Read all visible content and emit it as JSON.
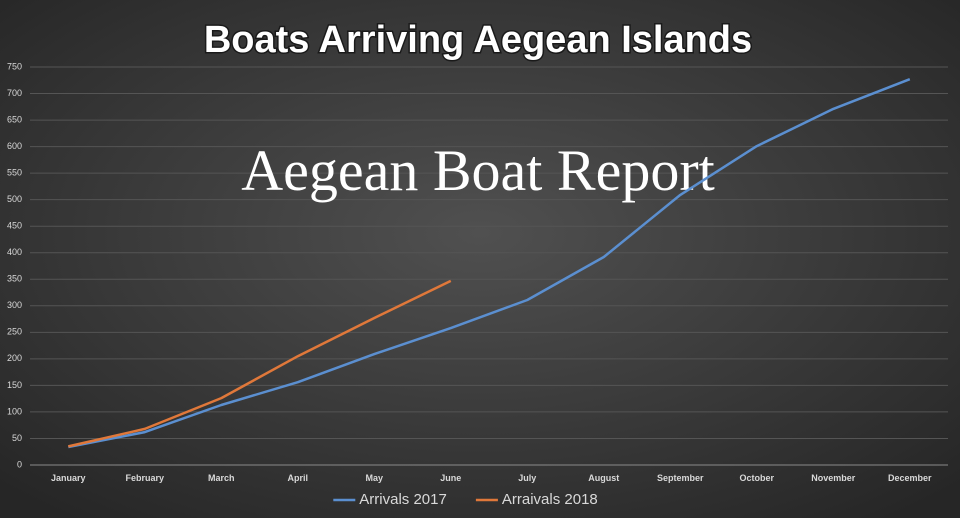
{
  "chart_data": {
    "type": "line",
    "title": "Boats Arriving Aegean Islands",
    "annotation": "Aegean Boat Report",
    "categories": [
      "January",
      "February",
      "March",
      "April",
      "May",
      "June",
      "July",
      "August",
      "September",
      "October",
      "November",
      "December"
    ],
    "series": [
      {
        "name": "Arrivals 2017",
        "color": "#5b8fd0",
        "values": [
          34,
          62,
          113,
          156,
          209,
          258,
          311,
          392,
          509,
          601,
          671,
          727
        ]
      },
      {
        "name": "Arraivals 2018",
        "color": "#e0783a",
        "values": [
          35,
          68,
          126,
          205,
          277,
          347,
          null,
          null,
          null,
          null,
          null,
          null
        ]
      }
    ],
    "ylim": [
      0,
      750
    ],
    "yticks": [
      0,
      50,
      100,
      150,
      200,
      250,
      300,
      350,
      400,
      450,
      500,
      550,
      600,
      650,
      700,
      750
    ],
    "grid": true,
    "legend": "bottom"
  }
}
